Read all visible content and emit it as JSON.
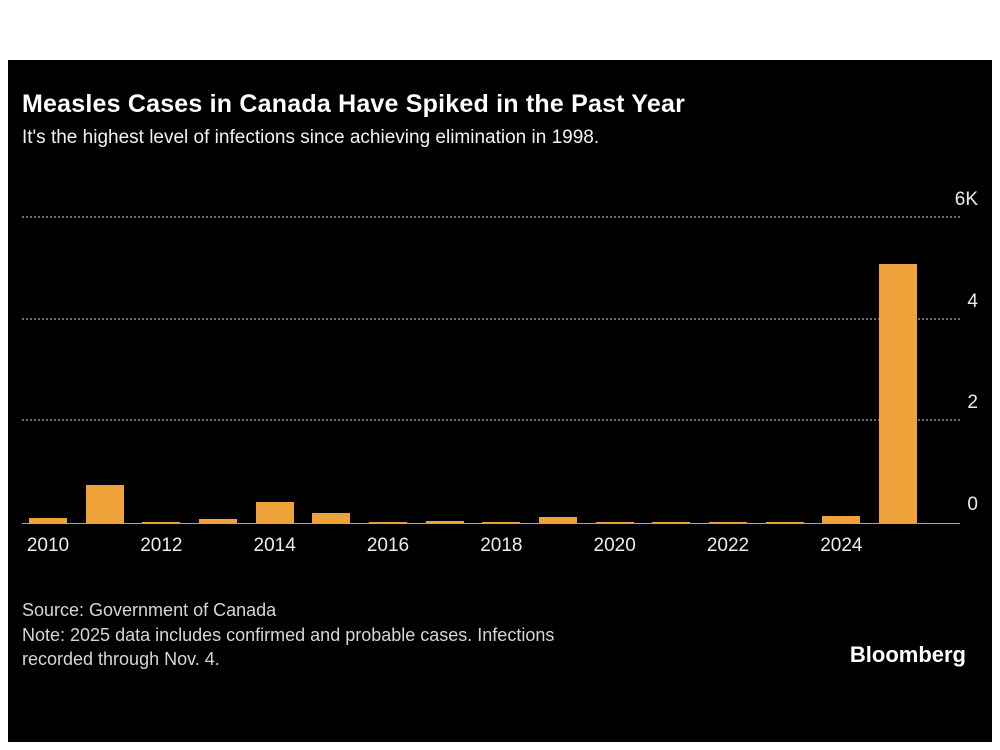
{
  "header": {
    "title": "Measles Cases in Canada Have Spiked in the Past Year",
    "subtitle": "It's the highest level of infections since achieving elimination in 1998."
  },
  "chart_data": {
    "type": "bar",
    "title": "Measles Cases in Canada Have Spiked in the Past Year",
    "subtitle": "It's the highest level of infections since achieving elimination in 1998.",
    "categories": [
      2010,
      2011,
      2012,
      2013,
      2014,
      2015,
      2016,
      2017,
      2018,
      2019,
      2020,
      2021,
      2022,
      2023,
      2024,
      2025
    ],
    "values": [
      100,
      750,
      10,
      85,
      420,
      200,
      11,
      45,
      29,
      115,
      2,
      1,
      3,
      12,
      145,
      5100
    ],
    "x_tick_labels": [
      "2010",
      "2012",
      "2014",
      "2016",
      "2018",
      "2020",
      "2022",
      "2024"
    ],
    "y_ticks": [
      {
        "value": 0,
        "label": "0"
      },
      {
        "value": 2000,
        "label": "2"
      },
      {
        "value": 4000,
        "label": "4"
      },
      {
        "value": 6000,
        "label": "6K"
      }
    ],
    "ylim": [
      0,
      6000
    ],
    "xlabel": "",
    "ylabel": "",
    "grid": "dotted horizontal",
    "legend": "none",
    "bar_color": "#EFA13A",
    "background_color": "#000000"
  },
  "footer": {
    "source": "Source: Government of Canada",
    "note_line1": "Note: 2025 data includes confirmed and probable cases. Infections",
    "note_line2": "recorded through Nov. 4.",
    "brand": "Bloomberg"
  }
}
